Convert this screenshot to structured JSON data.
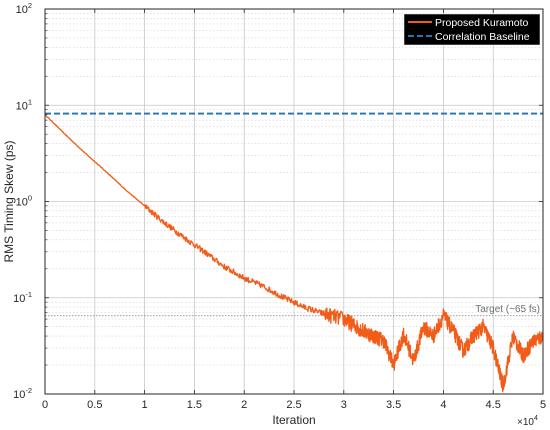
{
  "chart_data": {
    "type": "line",
    "xlabel": "Iteration",
    "ylabel": "RMS Timing Skew (ps)",
    "x_multiplier_label": "×10",
    "x_multiplier_exp": "4",
    "xlim": [
      0,
      50000
    ],
    "ylim": [
      0.01,
      100
    ],
    "yscale": "log",
    "x_tick_values": [
      0,
      5000,
      10000,
      15000,
      20000,
      25000,
      30000,
      35000,
      40000,
      45000,
      50000
    ],
    "x_tick_labels": [
      "0",
      "0.5",
      "1",
      "1.5",
      "2",
      "2.5",
      "3",
      "3.5",
      "4",
      "4.5",
      "5"
    ],
    "y_tick_values": [
      0.01,
      0.1,
      1,
      10,
      100
    ],
    "y_tick_labels": [
      {
        "base": "10",
        "exp": "-2"
      },
      {
        "base": "10",
        "exp": "-1"
      },
      {
        "base": "10",
        "exp": "0"
      },
      {
        "base": "10",
        "exp": "1"
      },
      {
        "base": "10",
        "exp": "2"
      }
    ],
    "grid": true,
    "minor_grid": true,
    "legend_position": "top-right",
    "series": [
      {
        "name": "Proposed Kuramoto",
        "color": "#f25c19",
        "style": "solid",
        "x": [
          0,
          2000,
          4000,
          6000,
          8000,
          10000,
          12000,
          14000,
          16000,
          18000,
          20000,
          22000,
          24000,
          26000,
          28000,
          30000,
          31000,
          32000,
          33000,
          34000,
          35000,
          36000,
          37000,
          38000,
          39000,
          40000,
          41000,
          42000,
          43000,
          44000,
          45000,
          46000,
          47000,
          48000,
          49000,
          50000
        ],
        "y": [
          8.0,
          5.0,
          3.2,
          2.1,
          1.35,
          0.9,
          0.6,
          0.42,
          0.3,
          0.21,
          0.16,
          0.13,
          0.1,
          0.08,
          0.068,
          0.06,
          0.052,
          0.045,
          0.04,
          0.036,
          0.02,
          0.042,
          0.022,
          0.05,
          0.04,
          0.065,
          0.045,
          0.028,
          0.04,
          0.05,
          0.03,
          0.012,
          0.04,
          0.025,
          0.035,
          0.04
        ]
      },
      {
        "name": "Correlation Baseline",
        "color": "#1f77b4",
        "style": "dashed",
        "x": [
          0,
          50000
        ],
        "y": [
          8.2,
          8.2
        ]
      }
    ],
    "annotations": [
      {
        "text": "Target (~65 fs)",
        "y": 0.065
      }
    ]
  }
}
